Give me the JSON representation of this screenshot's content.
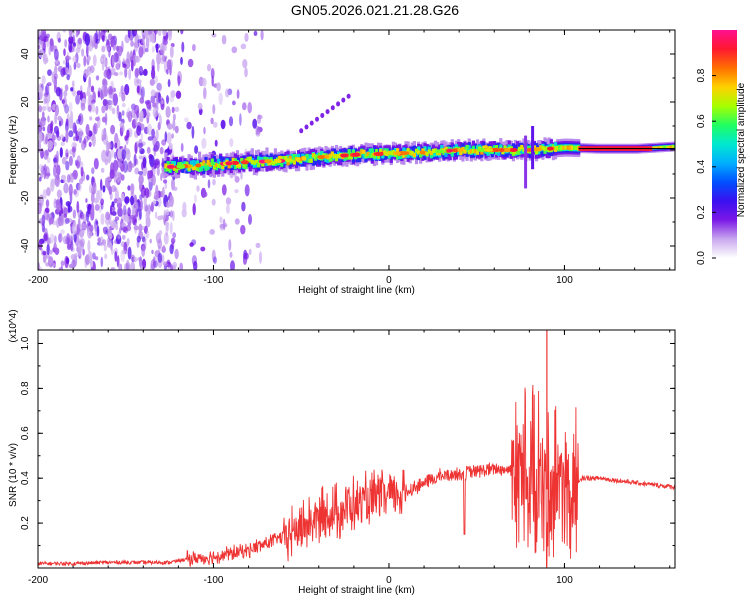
{
  "title": "GN05.2026.021.21.28.G26",
  "chart_data": [
    {
      "type": "heatmap",
      "title": "GN05.2026.021.21.28.G26",
      "xlabel": "Height of straight line (km)",
      "ylabel": "Frequency (Hz)",
      "xlim": [
        -200,
        163
      ],
      "ylim": [
        -50,
        50
      ],
      "x_ticks": [
        -200,
        -100,
        0,
        100
      ],
      "y_ticks": [
        -40,
        -20,
        0,
        20,
        40
      ],
      "colorbar": {
        "label": "Normalized spectral amplitude",
        "range": [
          0,
          1
        ],
        "ticks": [
          "0.0",
          "0.2",
          "0.4",
          "0.6",
          "0.8"
        ],
        "colors": [
          "#ffffff",
          "#c9a8ee",
          "#7a18e6",
          "#3a10f0",
          "#0050ff",
          "#00b0ff",
          "#00e8d0",
          "#20ff60",
          "#a8ff00",
          "#ffd000",
          "#ff7000",
          "#ff1830",
          "#ff1090"
        ]
      },
      "ridge_height_km": [
        -120,
        -100,
        -80,
        -60,
        -40,
        -20,
        0,
        20,
        40,
        60,
        80,
        100,
        120,
        140,
        163
      ],
      "ridge_frequency_hz": [
        -7,
        -6,
        -5,
        -4.5,
        -3,
        -2,
        -1.5,
        -1,
        0,
        0,
        0,
        1,
        0.5,
        0.5,
        1.5
      ]
    },
    {
      "type": "line",
      "xlabel": "Height of straight line (km)",
      "ylabel": "SNR (10 * v/v)",
      "y_multiplier": "(x10^4)",
      "xlim": [
        -200,
        163
      ],
      "ylim": [
        0,
        1.06
      ],
      "x_ticks": [
        -200,
        -100,
        0,
        100
      ],
      "y_ticks": [
        "0.2",
        "0.4",
        "0.6",
        "0.8",
        "1.0"
      ],
      "color": "#ee3333",
      "envelope_x_km": [
        -200,
        -180,
        -160,
        -140,
        -125,
        -115,
        -100,
        -80,
        -60,
        -50,
        -40,
        -30,
        -20,
        -10,
        0,
        10,
        20,
        30,
        40,
        50,
        60,
        70,
        75,
        80,
        85,
        90,
        95,
        100,
        105,
        110,
        120,
        140,
        163
      ],
      "envelope_snr": [
        0.02,
        0.02,
        0.025,
        0.025,
        0.025,
        0.04,
        0.05,
        0.08,
        0.14,
        0.18,
        0.22,
        0.25,
        0.28,
        0.3,
        0.32,
        0.34,
        0.38,
        0.41,
        0.42,
        0.43,
        0.44,
        0.44,
        0.42,
        0.38,
        0.35,
        0.35,
        0.34,
        0.33,
        0.34,
        0.4,
        0.4,
        0.38,
        0.36
      ],
      "peak_x_km": [
        90
      ],
      "peak_snr": [
        1.06
      ]
    }
  ]
}
